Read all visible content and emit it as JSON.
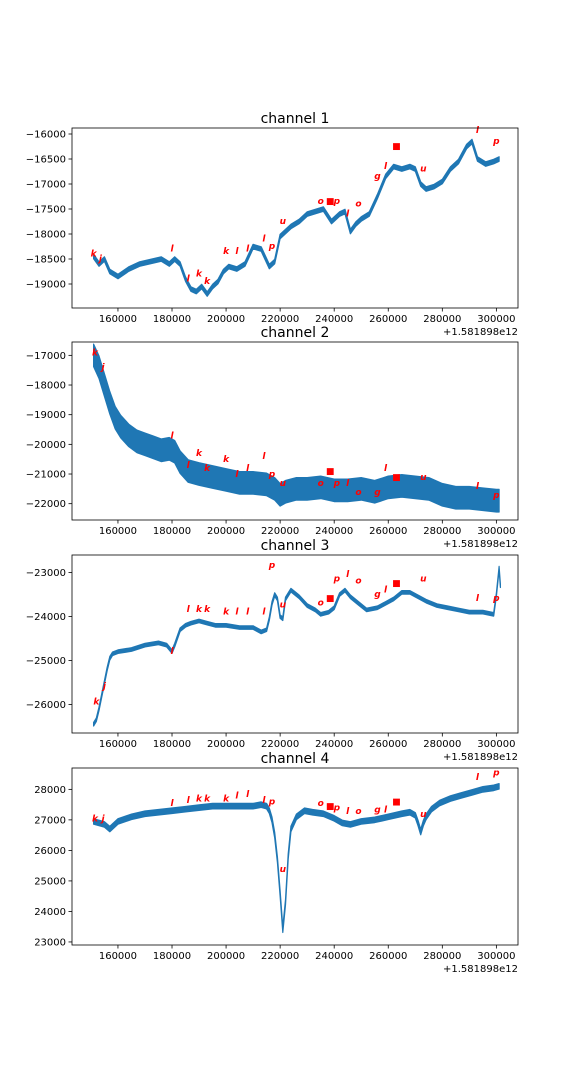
{
  "chart_data": [
    {
      "type": "line",
      "title": "channel 1",
      "x_offset_label": "+1.581898e12",
      "xlim": [
        143000,
        308000
      ],
      "ylim": [
        -19480,
        -15880
      ],
      "x_ticks": [
        160000,
        180000,
        200000,
        220000,
        240000,
        260000,
        280000,
        300000
      ],
      "y_ticks": [
        -19000,
        -18500,
        -18000,
        -17500,
        -17000,
        -16500,
        -16000
      ],
      "series_color": "#1f77b4",
      "band_width": 45,
      "series": [
        {
          "x": [
            151000,
            153000,
            155000,
            157000,
            160000,
            164000,
            168000,
            172000,
            176000,
            179000,
            181000,
            183000,
            185000,
            187000,
            189000,
            191000,
            193000,
            195000,
            197000,
            199000,
            201000,
            204000,
            207000,
            210000,
            213000,
            216000,
            218000,
            220000,
            222000,
            224000,
            227000,
            230000,
            233000,
            236000,
            239000,
            242000,
            244000,
            246000,
            248000,
            250000,
            253000,
            256000,
            259000,
            262000,
            265000,
            268000,
            270000,
            272000,
            274000,
            277000,
            280000,
            283000,
            286000,
            289000,
            291000,
            293000,
            296000,
            299000,
            301000
          ],
          "y": [
            -18450,
            -18600,
            -18500,
            -18750,
            -18850,
            -18700,
            -18600,
            -18550,
            -18500,
            -18600,
            -18500,
            -18600,
            -18900,
            -19100,
            -19150,
            -19050,
            -19200,
            -19050,
            -18950,
            -18750,
            -18650,
            -18700,
            -18600,
            -18250,
            -18300,
            -18650,
            -18550,
            -18050,
            -17950,
            -17850,
            -17750,
            -17600,
            -17550,
            -17500,
            -17750,
            -17600,
            -17550,
            -17950,
            -17800,
            -17700,
            -17600,
            -17250,
            -16850,
            -16650,
            -16700,
            -16650,
            -16700,
            -17000,
            -17100,
            -17050,
            -16950,
            -16700,
            -16550,
            -16250,
            -16150,
            -16500,
            -16600,
            -16550,
            -16500
          ]
        }
      ],
      "annotations": [
        {
          "label": "k",
          "x": 151000,
          "y": -18450
        },
        {
          "label": "j",
          "x": 153500,
          "y": -18550
        },
        {
          "label": "l",
          "x": 180000,
          "y": -18350
        },
        {
          "label": "l",
          "x": 186000,
          "y": -18950
        },
        {
          "label": "k",
          "x": 190000,
          "y": -18850
        },
        {
          "label": "k",
          "x": 193000,
          "y": -19000
        },
        {
          "label": "k",
          "x": 200000,
          "y": -18400
        },
        {
          "label": "l",
          "x": 204000,
          "y": -18400
        },
        {
          "label": "l",
          "x": 208000,
          "y": -18350
        },
        {
          "label": "l",
          "x": 214000,
          "y": -18150
        },
        {
          "label": "p",
          "x": 217000,
          "y": -18300
        },
        {
          "label": "u",
          "x": 221000,
          "y": -17800
        },
        {
          "label": "o",
          "x": 235000,
          "y": -17400
        },
        {
          "label": "■",
          "x": 238500,
          "y": -17400
        },
        {
          "label": "p",
          "x": 241000,
          "y": -17400
        },
        {
          "label": "l",
          "x": 245000,
          "y": -17650
        },
        {
          "label": "o",
          "x": 249000,
          "y": -17450
        },
        {
          "label": "g",
          "x": 256000,
          "y": -16900
        },
        {
          "label": "l",
          "x": 259000,
          "y": -16700
        },
        {
          "label": "■",
          "x": 263000,
          "y": -16300
        },
        {
          "label": "u",
          "x": 273000,
          "y": -16750
        },
        {
          "label": "l",
          "x": 293000,
          "y": -15980
        },
        {
          "label": "p",
          "x": 300000,
          "y": -16200
        }
      ]
    },
    {
      "type": "line",
      "title": "channel 2",
      "x_offset_label": "+1.581898e12",
      "xlim": [
        143000,
        308000
      ],
      "ylim": [
        -22550,
        -16550
      ],
      "x_ticks": [
        160000,
        180000,
        200000,
        220000,
        240000,
        260000,
        280000,
        300000
      ],
      "y_ticks": [
        -22000,
        -21000,
        -20000,
        -19000,
        -18000,
        -17000
      ],
      "series_color": "#1f77b4",
      "band_width": 380,
      "series": [
        {
          "x": [
            151000,
            153000,
            155000,
            157000,
            159000,
            161000,
            164000,
            167000,
            170000,
            173000,
            176000,
            179000,
            181000,
            183000,
            186000,
            190000,
            195000,
            200000,
            205000,
            210000,
            215000,
            218000,
            220000,
            222000,
            226000,
            230000,
            235000,
            240000,
            245000,
            250000,
            255000,
            260000,
            265000,
            270000,
            275000,
            280000,
            285000,
            290000,
            295000,
            300000,
            301000
          ],
          "y": [
            -17000,
            -17400,
            -18000,
            -18600,
            -19100,
            -19400,
            -19700,
            -19900,
            -20000,
            -20100,
            -20200,
            -20150,
            -20250,
            -20600,
            -20900,
            -21000,
            -21100,
            -21200,
            -21300,
            -21300,
            -21350,
            -21500,
            -21700,
            -21600,
            -21500,
            -21500,
            -21450,
            -21550,
            -21550,
            -21500,
            -21600,
            -21450,
            -21400,
            -21450,
            -21500,
            -21700,
            -21800,
            -21800,
            -21850,
            -21900,
            -21900
          ]
        }
      ],
      "annotations": [
        {
          "label": "k",
          "x": 151500,
          "y": -17000
        },
        {
          "label": "j",
          "x": 154500,
          "y": -17500
        },
        {
          "label": "l",
          "x": 180000,
          "y": -19800
        },
        {
          "label": "l",
          "x": 186000,
          "y": -20800
        },
        {
          "label": "k",
          "x": 190000,
          "y": -20400
        },
        {
          "label": "k",
          "x": 193000,
          "y": -20900
        },
        {
          "label": "k",
          "x": 200000,
          "y": -20600
        },
        {
          "label": "l",
          "x": 204000,
          "y": -21100
        },
        {
          "label": "l",
          "x": 208000,
          "y": -20900
        },
        {
          "label": "l",
          "x": 214000,
          "y": -20500
        },
        {
          "label": "p",
          "x": 217000,
          "y": -21100
        },
        {
          "label": "u",
          "x": 221000,
          "y": -21400
        },
        {
          "label": "o",
          "x": 235000,
          "y": -21400
        },
        {
          "label": "■",
          "x": 238500,
          "y": -21000
        },
        {
          "label": "p",
          "x": 241000,
          "y": -21400
        },
        {
          "label": "l",
          "x": 245000,
          "y": -21400
        },
        {
          "label": "o",
          "x": 249000,
          "y": -21700
        },
        {
          "label": "g",
          "x": 256000,
          "y": -21700
        },
        {
          "label": "l",
          "x": 259000,
          "y": -20900
        },
        {
          "label": "■",
          "x": 263000,
          "y": -21200
        },
        {
          "label": "u",
          "x": 273000,
          "y": -21200
        },
        {
          "label": "l",
          "x": 293000,
          "y": -21500
        },
        {
          "label": "p",
          "x": 300000,
          "y": -21800
        }
      ]
    },
    {
      "type": "line",
      "title": "channel 3",
      "x_offset_label": "+1.581898e12",
      "xlim": [
        143000,
        308000
      ],
      "ylim": [
        -26650,
        -22600
      ],
      "x_ticks": [
        160000,
        180000,
        200000,
        220000,
        240000,
        260000,
        280000,
        300000
      ],
      "y_ticks": [
        -26000,
        -25000,
        -24000,
        -23000
      ],
      "series_color": "#1f77b4",
      "band_width": 40,
      "series": [
        {
          "x": [
            151000,
            152000,
            153000,
            154000,
            155000,
            156000,
            157000,
            158000,
            160000,
            165000,
            170000,
            175000,
            178000,
            180000,
            181000,
            183000,
            185000,
            187000,
            190000,
            193000,
            196000,
            200000,
            205000,
            210000,
            213000,
            215000,
            216000,
            217000,
            218000,
            219000,
            220000,
            221000,
            222000,
            224000,
            227000,
            230000,
            233000,
            235000,
            238000,
            240000,
            242000,
            244000,
            246000,
            249000,
            252000,
            256000,
            259000,
            262000,
            265000,
            268000,
            271000,
            274000,
            278000,
            282000,
            286000,
            290000,
            295000,
            299000,
            300000,
            301000,
            301500
          ],
          "y": [
            -26450,
            -26350,
            -26100,
            -25800,
            -25500,
            -25200,
            -24950,
            -24850,
            -24800,
            -24750,
            -24650,
            -24600,
            -24650,
            -24800,
            -24650,
            -24300,
            -24200,
            -24150,
            -24100,
            -24150,
            -24200,
            -24200,
            -24250,
            -24250,
            -24350,
            -24300,
            -24050,
            -23700,
            -23500,
            -23600,
            -24000,
            -24050,
            -23600,
            -23400,
            -23550,
            -23750,
            -23850,
            -23950,
            -23900,
            -23800,
            -23500,
            -23400,
            -23550,
            -23700,
            -23850,
            -23800,
            -23700,
            -23600,
            -23450,
            -23450,
            -23550,
            -23650,
            -23750,
            -23800,
            -23850,
            -23900,
            -23900,
            -23950,
            -23500,
            -22900,
            -23300
          ]
        }
      ],
      "annotations": [
        {
          "label": "k",
          "x": 152000,
          "y": -26000
        },
        {
          "label": "j",
          "x": 155000,
          "y": -25650
        },
        {
          "label": "l",
          "x": 180000,
          "y": -24850
        },
        {
          "label": "l",
          "x": 186000,
          "y": -23900
        },
        {
          "label": "k",
          "x": 190000,
          "y": -23900
        },
        {
          "label": "k",
          "x": 193000,
          "y": -23900
        },
        {
          "label": "k",
          "x": 200000,
          "y": -23950
        },
        {
          "label": "l",
          "x": 204000,
          "y": -23950
        },
        {
          "label": "l",
          "x": 208000,
          "y": -23950
        },
        {
          "label": "l",
          "x": 214000,
          "y": -23950
        },
        {
          "label": "p",
          "x": 217000,
          "y": -22900
        },
        {
          "label": "u",
          "x": 221000,
          "y": -23800
        },
        {
          "label": "o",
          "x": 235000,
          "y": -23750
        },
        {
          "label": "■",
          "x": 238500,
          "y": -23650
        },
        {
          "label": "p",
          "x": 241000,
          "y": -23200
        },
        {
          "label": "l",
          "x": 245000,
          "y": -23100
        },
        {
          "label": "o",
          "x": 249000,
          "y": -23250
        },
        {
          "label": "g",
          "x": 256000,
          "y": -23550
        },
        {
          "label": "l",
          "x": 259000,
          "y": -23450
        },
        {
          "label": "■",
          "x": 263000,
          "y": -23300
        },
        {
          "label": "u",
          "x": 273000,
          "y": -23200
        },
        {
          "label": "l",
          "x": 293000,
          "y": -23650
        },
        {
          "label": "p",
          "x": 300000,
          "y": -23650
        }
      ]
    },
    {
      "type": "line",
      "title": "channel 4",
      "x_offset_label": "+1.581898e12",
      "xlim": [
        143000,
        308000
      ],
      "ylim": [
        22900,
        28700
      ],
      "x_ticks": [
        160000,
        180000,
        200000,
        220000,
        240000,
        260000,
        280000,
        300000
      ],
      "y_ticks": [
        23000,
        24000,
        25000,
        26000,
        27000,
        28000
      ],
      "series_color": "#1f77b4",
      "band_width": 90,
      "series": [
        {
          "x": [
            151000,
            153000,
            155000,
            157000,
            160000,
            165000,
            170000,
            175000,
            180000,
            185000,
            190000,
            195000,
            200000,
            205000,
            210000,
            213000,
            215000,
            216000,
            217000,
            218000,
            219000,
            220000,
            221000,
            222000,
            223000,
            224000,
            226000,
            229000,
            232000,
            236000,
            240000,
            243000,
            246000,
            250000,
            255000,
            260000,
            265000,
            268000,
            270000,
            271000,
            272000,
            273000,
            274000,
            276000,
            279000,
            283000,
            287000,
            291000,
            295000,
            299000,
            301000
          ],
          "y": [
            26950,
            26900,
            26850,
            26700,
            26950,
            27100,
            27200,
            27250,
            27300,
            27350,
            27400,
            27450,
            27450,
            27450,
            27450,
            27500,
            27450,
            27300,
            27000,
            26500,
            25700,
            24600,
            23400,
            24300,
            25800,
            26700,
            27100,
            27300,
            27250,
            27200,
            27050,
            26900,
            26850,
            26950,
            27000,
            27100,
            27200,
            27250,
            27150,
            26900,
            26600,
            26900,
            27100,
            27350,
            27550,
            27700,
            27800,
            27900,
            28000,
            28050,
            28100
          ]
        }
      ],
      "annotations": [
        {
          "label": "k",
          "x": 151500,
          "y": 26950
        },
        {
          "label": "j",
          "x": 154500,
          "y": 26950
        },
        {
          "label": "l",
          "x": 180000,
          "y": 27450
        },
        {
          "label": "l",
          "x": 186000,
          "y": 27550
        },
        {
          "label": "k",
          "x": 190000,
          "y": 27600
        },
        {
          "label": "k",
          "x": 193000,
          "y": 27600
        },
        {
          "label": "k",
          "x": 200000,
          "y": 27600
        },
        {
          "label": "l",
          "x": 204000,
          "y": 27700
        },
        {
          "label": "l",
          "x": 208000,
          "y": 27750
        },
        {
          "label": "l",
          "x": 214000,
          "y": 27550
        },
        {
          "label": "p",
          "x": 217000,
          "y": 27500
        },
        {
          "label": "u",
          "x": 221000,
          "y": 25300
        },
        {
          "label": "o",
          "x": 235000,
          "y": 27450
        },
        {
          "label": "■",
          "x": 238500,
          "y": 27350
        },
        {
          "label": "p",
          "x": 241000,
          "y": 27300
        },
        {
          "label": "l",
          "x": 245000,
          "y": 27200
        },
        {
          "label": "o",
          "x": 249000,
          "y": 27200
        },
        {
          "label": "g",
          "x": 256000,
          "y": 27250
        },
        {
          "label": "l",
          "x": 259000,
          "y": 27250
        },
        {
          "label": "■",
          "x": 263000,
          "y": 27500
        },
        {
          "label": "u",
          "x": 273000,
          "y": 27100
        },
        {
          "label": "l",
          "x": 293000,
          "y": 28300
        },
        {
          "label": "p",
          "x": 300000,
          "y": 28450
        }
      ]
    }
  ]
}
